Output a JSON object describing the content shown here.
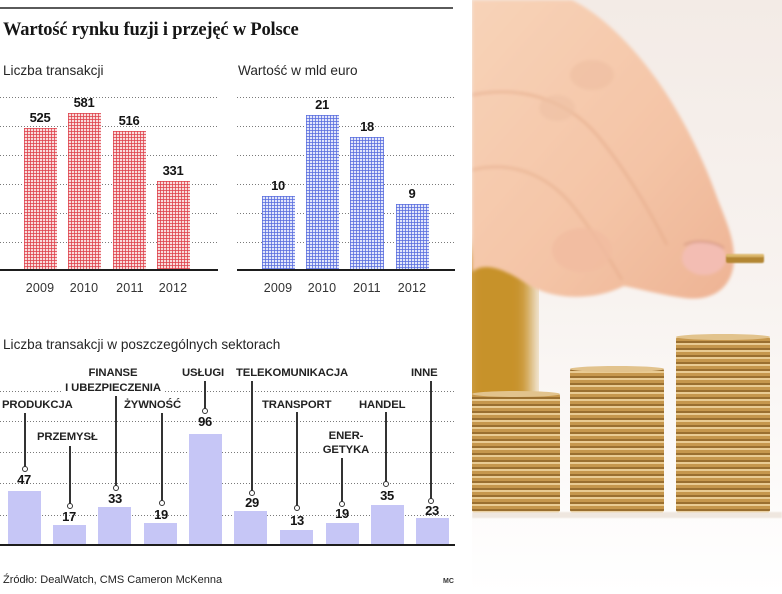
{
  "title": "Wartość rynku fuzji i przejęć w Polsce",
  "colors": {
    "transactions_bar": "#e0464e",
    "value_bar": "#5a6ede",
    "sector_bar": "#c6c6f6",
    "axis": "#1d1d1d",
    "grid": "#7a7a7a"
  },
  "chart_data": [
    {
      "type": "bar",
      "title": "Liczba transakcji",
      "categories": [
        "2009",
        "2010",
        "2011",
        "2012"
      ],
      "values": [
        525,
        581,
        516,
        331
      ],
      "xlabel": "",
      "ylabel": "Liczba transakcji",
      "ylim": [
        0,
        700
      ],
      "grid": true,
      "data_labels": [
        "525",
        "581",
        "516",
        "331"
      ]
    },
    {
      "type": "bar",
      "title": "Wartość w mld euro",
      "categories": [
        "2009",
        "2010",
        "2011",
        "2012"
      ],
      "values": [
        10,
        21,
        18,
        9
      ],
      "xlabel": "",
      "ylabel": "mld euro",
      "ylim": [
        0,
        24
      ],
      "grid": true,
      "data_labels": [
        "10",
        "21",
        "18",
        "9"
      ]
    },
    {
      "type": "bar",
      "title": "Liczba transakcji w poszczególnych sektorach",
      "categories": [
        "PRODUKCJA",
        "PRZEMYSŁ",
        "FINANSE I UBEZPIECZENIA",
        "ŻYWNOŚĆ",
        "USŁUGI",
        "TELEKOMUNIKACJA",
        "TRANSPORT",
        "ENERGETYKA",
        "HANDEL",
        "INNE"
      ],
      "values": [
        47,
        17,
        33,
        19,
        96,
        29,
        13,
        19,
        35,
        23
      ],
      "xlabel": "",
      "ylabel": "Liczba transakcji",
      "grid": true,
      "data_labels": [
        "47",
        "17",
        "33",
        "19",
        "96",
        "29",
        "13",
        "19",
        "35",
        "23"
      ]
    }
  ],
  "sectors": [
    {
      "lines": [
        "PRODUKCJA"
      ]
    },
    {
      "lines": [
        "PRZEMYSŁ"
      ]
    },
    {
      "lines": [
        "FINANSE",
        "I UBEZPIECZENIA"
      ]
    },
    {
      "lines": [
        "ŻYWNOŚĆ"
      ]
    },
    {
      "lines": [
        "USŁUGI"
      ]
    },
    {
      "lines": [
        "TELEKOMUNIKACJA"
      ]
    },
    {
      "lines": [
        "TRANSPORT"
      ]
    },
    {
      "lines": [
        "ENER-",
        "GETYKA"
      ]
    },
    {
      "lines": [
        "HANDEL"
      ]
    },
    {
      "lines": [
        "INNE"
      ]
    }
  ],
  "source": "Źródło: DealWatch, CMS Cameron McKenna",
  "credit": "MC",
  "photo": {
    "subject": "hand placing a coin onto stacks of coins"
  }
}
